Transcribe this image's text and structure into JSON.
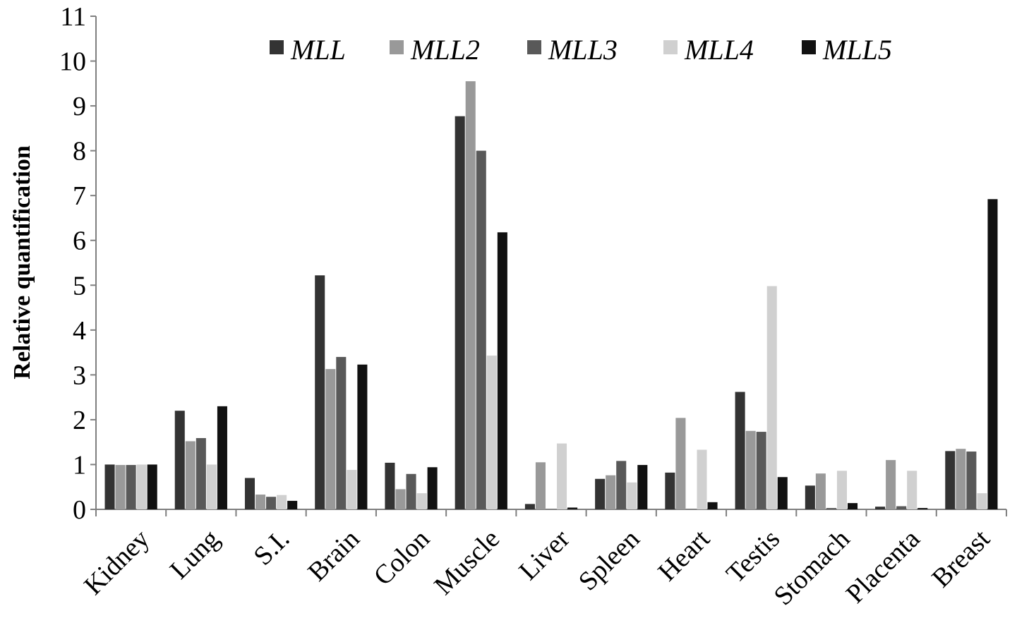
{
  "chart_data": {
    "type": "bar",
    "title": "",
    "xlabel": "",
    "ylabel": "Relative quantification",
    "ylim": [
      0,
      11
    ],
    "yticks": [
      "0",
      "1",
      "2",
      "3",
      "4",
      "5",
      "6",
      "7",
      "8",
      "9",
      "10",
      "11"
    ],
    "grid": false,
    "legend_position": "top",
    "categories": [
      "Kidney",
      "Lung",
      "S.I.",
      "Brain",
      "Colon",
      "Muscle",
      "Liver",
      "Spleen",
      "Heart",
      "Testis",
      "Stomach",
      "Placenta",
      "Breast"
    ],
    "series": [
      {
        "name": "MLL",
        "color": "#333333",
        "values": [
          1.0,
          2.2,
          0.7,
          5.22,
          1.04,
          8.77,
          0.12,
          0.68,
          0.82,
          2.62,
          0.53,
          0.06,
          1.3
        ]
      },
      {
        "name": "MLL2",
        "color": "#999999",
        "values": [
          0.99,
          1.52,
          0.33,
          3.13,
          0.45,
          9.55,
          1.05,
          0.76,
          2.04,
          1.75,
          0.8,
          1.1,
          1.35
        ]
      },
      {
        "name": "MLL3",
        "color": "#595959",
        "values": [
          0.99,
          1.59,
          0.28,
          3.4,
          0.79,
          8.0,
          0.0,
          1.08,
          0.0,
          1.73,
          0.03,
          0.07,
          1.29
        ]
      },
      {
        "name": "MLL4",
        "color": "#d0d0d0",
        "values": [
          1.0,
          1.0,
          0.32,
          0.88,
          0.36,
          3.43,
          1.47,
          0.6,
          1.33,
          4.98,
          0.86,
          0.86,
          0.36
        ]
      },
      {
        "name": "MLL5",
        "color": "#111111",
        "values": [
          1.0,
          2.3,
          0.19,
          3.23,
          0.94,
          6.18,
          0.04,
          0.99,
          0.16,
          0.72,
          0.14,
          0.03,
          6.92
        ]
      }
    ]
  }
}
